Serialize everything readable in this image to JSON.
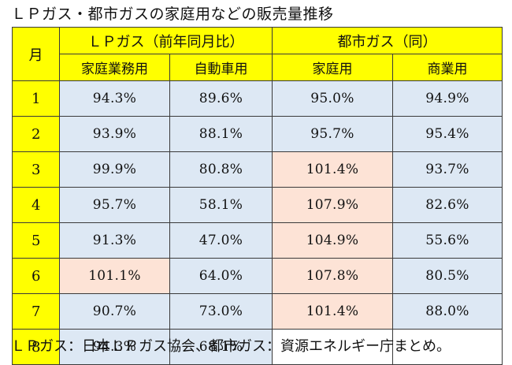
{
  "title": "ＬＰガス・都市ガスの家庭用などの販売量推移",
  "table": {
    "month_header": "月",
    "group_headers": [
      "ＬＰガス（前年同月比）",
      "都市ガス（同）"
    ],
    "sub_headers": [
      "家庭業務用",
      "自動車用",
      "家庭用",
      "商業用"
    ],
    "rows": [
      {
        "month": "1",
        "values": [
          "94.3%",
          "89.6%",
          "95.0%",
          "94.9%"
        ]
      },
      {
        "month": "2",
        "values": [
          "93.9%",
          "88.1%",
          "95.7%",
          "95.4%"
        ]
      },
      {
        "month": "3",
        "values": [
          "99.9%",
          "80.8%",
          "101.4%",
          "93.7%"
        ]
      },
      {
        "month": "4",
        "values": [
          "95.7%",
          "58.1%",
          "107.9%",
          "82.6%"
        ]
      },
      {
        "month": "5",
        "values": [
          "91.3%",
          "47.0%",
          "104.9%",
          "55.6%"
        ]
      },
      {
        "month": "6",
        "values": [
          "101.1%",
          "64.0%",
          "107.8%",
          "80.5%"
        ]
      },
      {
        "month": "7",
        "values": [
          "90.7%",
          "73.0%",
          "101.4%",
          "88.0%"
        ]
      },
      {
        "month": "8",
        "values": [
          "94.3%",
          "68.1%",
          "",
          ""
        ]
      }
    ]
  },
  "colors": {
    "header_bg": "#ffff00",
    "cell_bg": "#dde8f4",
    "highlight_bg": "#fde3d6"
  },
  "footer": "ＬＰガス：日本ＬＰガス協会、都市ガス：資源エネルギー庁まとめ。"
}
